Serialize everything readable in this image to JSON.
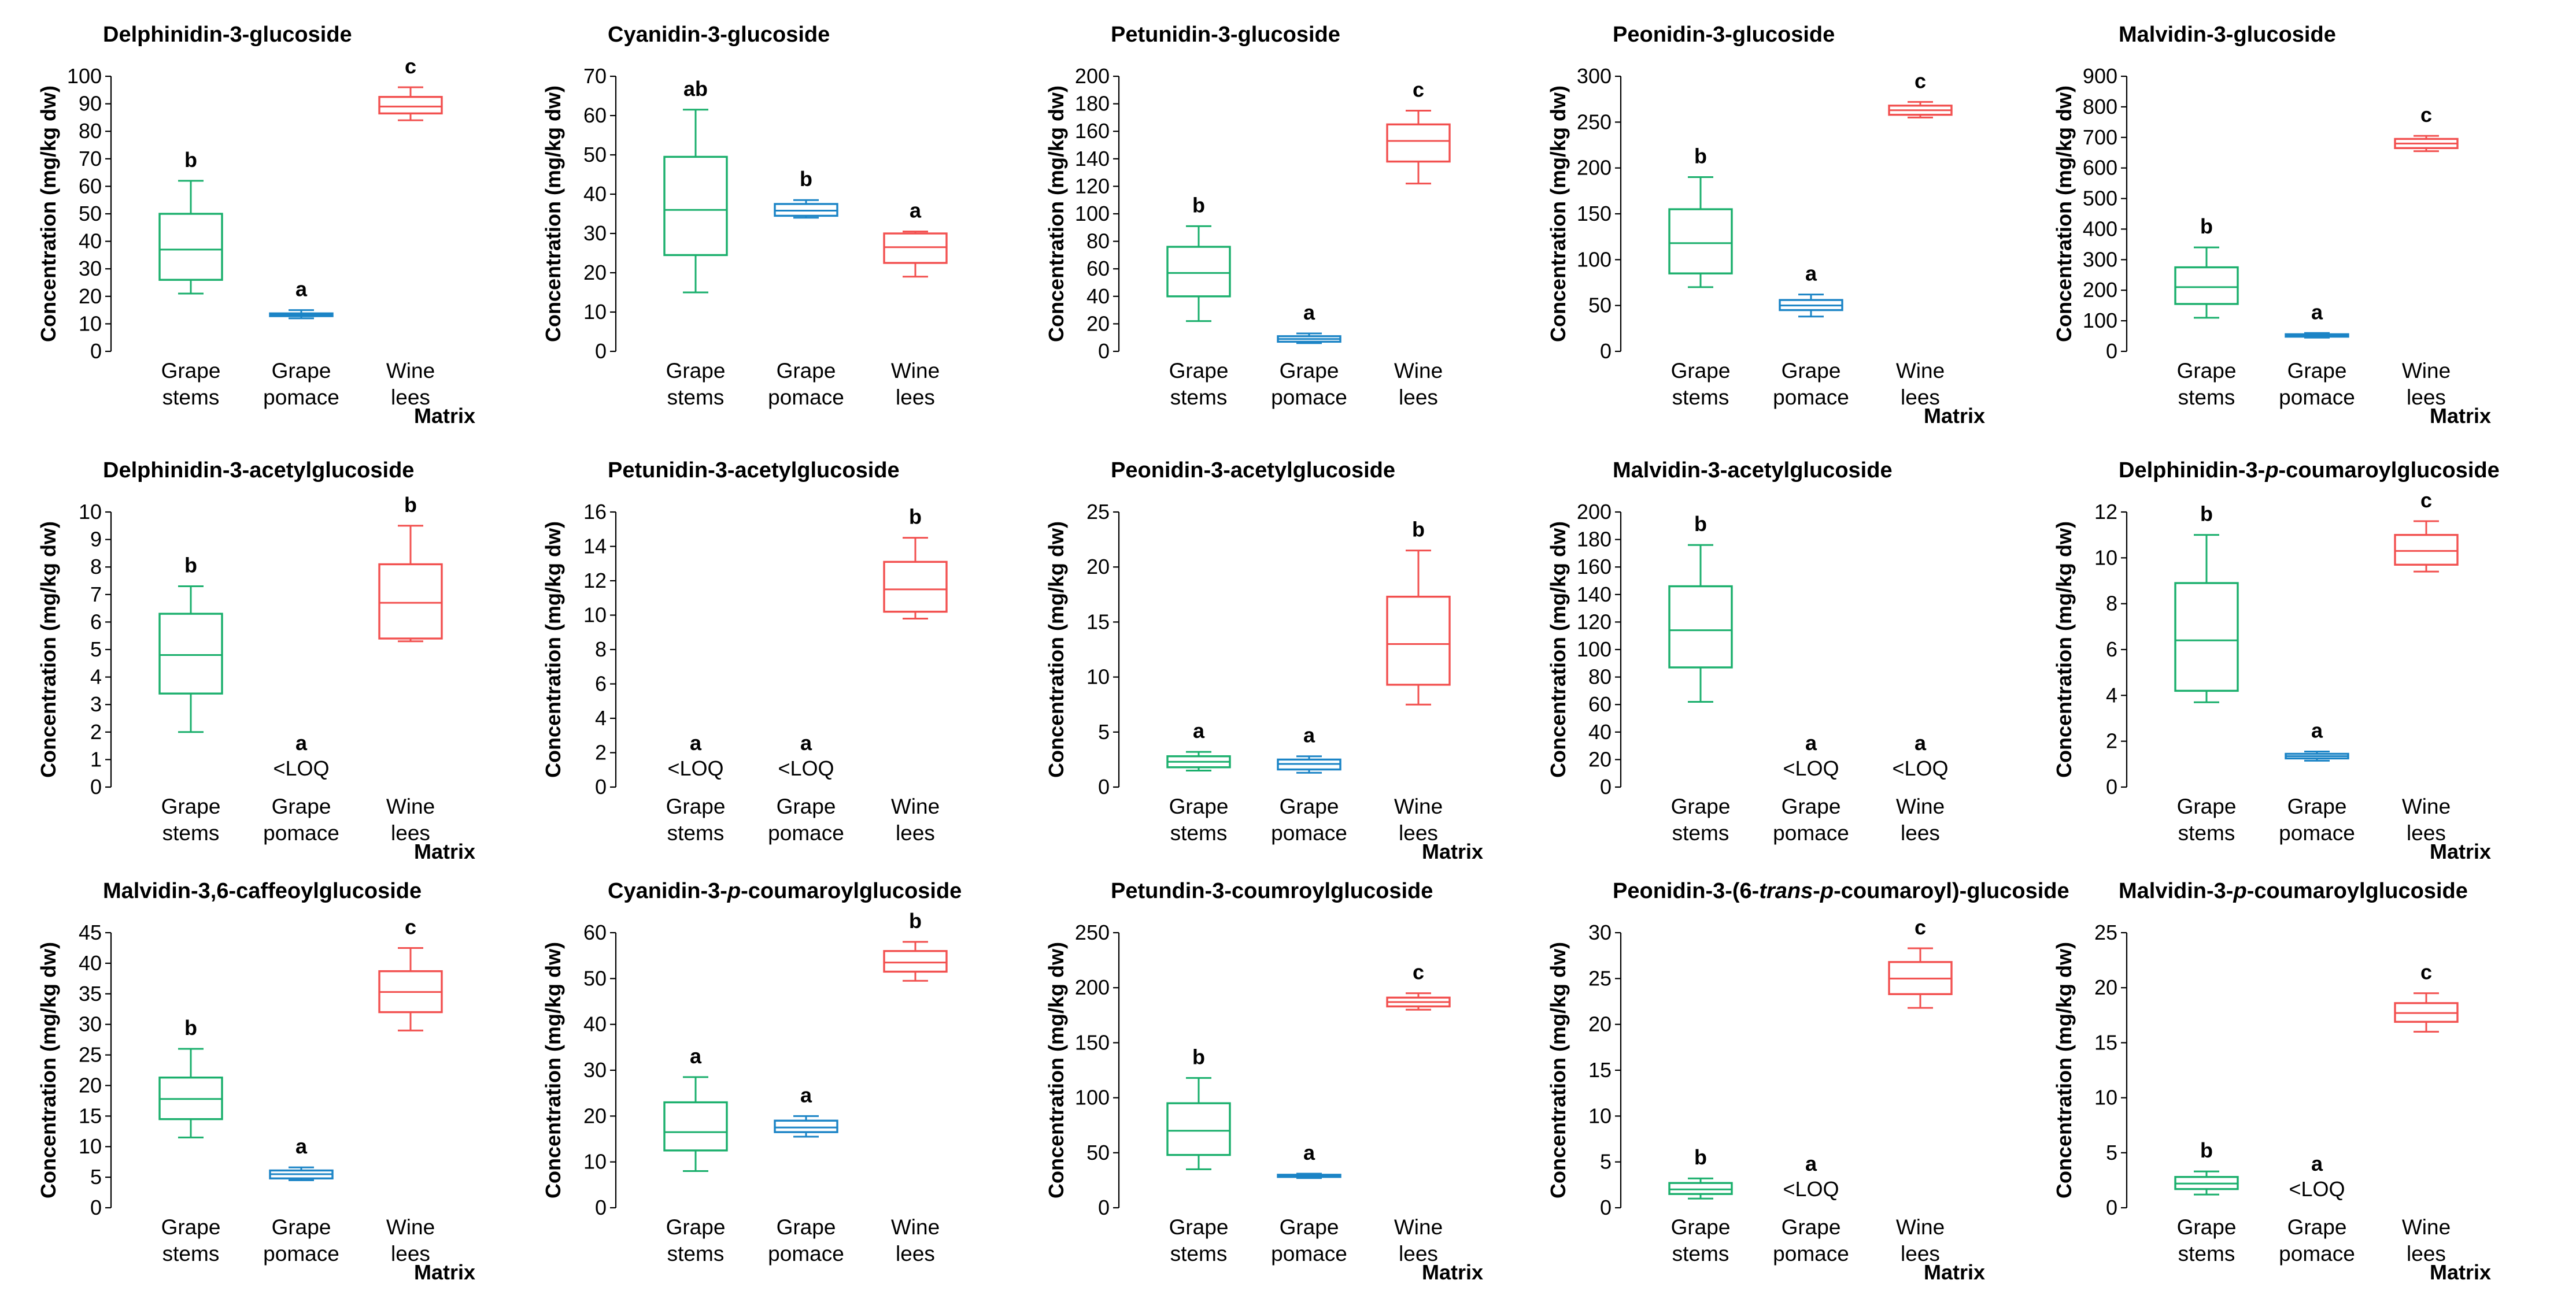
{
  "colors": {
    "grape_stems": "#1aaf6c",
    "grape_pomace": "#1b84c6",
    "wine_lees": "#f2504f"
  },
  "chart_data": [
    {
      "type": "boxplot",
      "title": "Delphinidin-3-glucoside",
      "title_parts": [
        {
          "t": "Delphinidin-3-glucoside",
          "i": false
        }
      ],
      "ylabel": "Concentration (mg/kg dw)",
      "xlabel": "Matrix",
      "categories": [
        [
          "Grape",
          "stems"
        ],
        [
          "Grape",
          "pomace"
        ],
        [
          "Wine",
          "lees"
        ]
      ],
      "ylim": [
        0,
        100
      ],
      "yticks": [
        0,
        10,
        20,
        30,
        40,
        50,
        60,
        70,
        80,
        90,
        100
      ],
      "boxes": [
        {
          "min": 21,
          "q1": 26,
          "median": 37,
          "q3": 50,
          "max": 62,
          "letter": "b",
          "loq": null
        },
        {
          "min": 12,
          "q1": 12.8,
          "median": 13.2,
          "q3": 13.8,
          "max": 15,
          "letter": "a",
          "loq": null
        },
        {
          "min": 84,
          "q1": 86.5,
          "median": 89,
          "q3": 92.5,
          "max": 96,
          "letter": "c",
          "loq": null
        }
      ]
    },
    {
      "type": "boxplot",
      "title": "Cyanidin-3-glucoside",
      "title_parts": [
        {
          "t": "Cyanidin-3-glucoside",
          "i": false
        }
      ],
      "ylabel": "Concentration (mg/kg dw)",
      "xlabel": "",
      "categories": [
        [
          "Grape",
          "stems"
        ],
        [
          "Grape",
          "pomace"
        ],
        [
          "Wine",
          "lees"
        ]
      ],
      "ylim": [
        0,
        70
      ],
      "yticks": [
        0,
        10,
        20,
        30,
        40,
        50,
        60,
        70
      ],
      "boxes": [
        {
          "min": 15,
          "q1": 24.5,
          "median": 36,
          "q3": 49.5,
          "max": 61.5,
          "letter": "ab",
          "loq": null
        },
        {
          "min": 34,
          "q1": 34.5,
          "median": 35.8,
          "q3": 37.5,
          "max": 38.5,
          "letter": "b",
          "loq": null
        },
        {
          "min": 19,
          "q1": 22.5,
          "median": 26.5,
          "q3": 30,
          "max": 30.5,
          "letter": "a",
          "loq": null
        }
      ]
    },
    {
      "type": "boxplot",
      "title": "Petunidin-3-glucoside",
      "title_parts": [
        {
          "t": "Petunidin-3-glucoside",
          "i": false
        }
      ],
      "ylabel": "Concentration (mg/kg dw)",
      "xlabel": "",
      "categories": [
        [
          "Grape",
          "stems"
        ],
        [
          "Grape",
          "pomace"
        ],
        [
          "Wine",
          "lees"
        ]
      ],
      "ylim": [
        0,
        200
      ],
      "yticks": [
        0,
        20,
        40,
        60,
        80,
        100,
        120,
        140,
        160,
        180,
        200
      ],
      "boxes": [
        {
          "min": 22,
          "q1": 40,
          "median": 57,
          "q3": 76,
          "max": 91,
          "letter": "b",
          "loq": null
        },
        {
          "min": 6,
          "q1": 7,
          "median": 9,
          "q3": 11,
          "max": 13,
          "letter": "a",
          "loq": null
        },
        {
          "min": 122,
          "q1": 138,
          "median": 153,
          "q3": 165,
          "max": 175,
          "letter": "c",
          "loq": null
        }
      ]
    },
    {
      "type": "boxplot",
      "title": "Peonidin-3-glucoside",
      "title_parts": [
        {
          "t": "Peonidin-3-glucoside",
          "i": false
        }
      ],
      "ylabel": "Concentration (mg/kg dw)",
      "xlabel": "Matrix",
      "categories": [
        [
          "Grape",
          "stems"
        ],
        [
          "Grape",
          "pomace"
        ],
        [
          "Wine",
          "lees"
        ]
      ],
      "ylim": [
        0,
        300
      ],
      "yticks": [
        0,
        50,
        100,
        150,
        200,
        250,
        300
      ],
      "boxes": [
        {
          "min": 70,
          "q1": 85,
          "median": 118,
          "q3": 155,
          "max": 190,
          "letter": "b",
          "loq": null
        },
        {
          "min": 38,
          "q1": 45,
          "median": 50,
          "q3": 56,
          "max": 62,
          "letter": "a",
          "loq": null
        },
        {
          "min": 255,
          "q1": 258,
          "median": 263,
          "q3": 268,
          "max": 272,
          "letter": "c",
          "loq": null
        }
      ]
    },
    {
      "type": "boxplot",
      "title": "Malvidin-3-glucoside",
      "title_parts": [
        {
          "t": "Malvidin-3-glucoside",
          "i": false
        }
      ],
      "ylabel": "Concentration (mg/kg dw)",
      "xlabel": "Matrix",
      "categories": [
        [
          "Grape",
          "stems"
        ],
        [
          "Grape",
          "pomace"
        ],
        [
          "Wine",
          "lees"
        ]
      ],
      "ylim": [
        0,
        900
      ],
      "yticks": [
        0,
        100,
        200,
        300,
        400,
        500,
        600,
        700,
        800,
        900
      ],
      "boxes": [
        {
          "min": 110,
          "q1": 155,
          "median": 210,
          "q3": 275,
          "max": 340,
          "letter": "b",
          "loq": null
        },
        {
          "min": 45,
          "q1": 48,
          "median": 52,
          "q3": 56,
          "max": 60,
          "letter": "a",
          "loq": null
        },
        {
          "min": 655,
          "q1": 665,
          "median": 680,
          "q3": 695,
          "max": 705,
          "letter": "c",
          "loq": null
        }
      ]
    },
    {
      "type": "boxplot",
      "title": "Delphinidin-3-acetylglucoside",
      "title_parts": [
        {
          "t": "Delphinidin-3-acetylglucoside",
          "i": false
        }
      ],
      "ylabel": "Concentration (mg/kg dw)",
      "xlabel": "Matrix",
      "categories": [
        [
          "Grape",
          "stems"
        ],
        [
          "Grape",
          "pomace"
        ],
        [
          "Wine",
          "lees"
        ]
      ],
      "ylim": [
        0,
        10
      ],
      "yticks": [
        0,
        1,
        2,
        3,
        4,
        5,
        6,
        7,
        8,
        9,
        10
      ],
      "boxes": [
        {
          "min": 2,
          "q1": 3.4,
          "median": 4.8,
          "q3": 6.3,
          "max": 7.3,
          "letter": "b",
          "loq": null
        },
        {
          "min": null,
          "q1": null,
          "median": null,
          "q3": null,
          "max": null,
          "letter": "a",
          "loq": "<LOQ"
        },
        {
          "min": 5.3,
          "q1": 5.4,
          "median": 6.7,
          "q3": 8.1,
          "max": 9.5,
          "letter": "b",
          "loq": null
        }
      ]
    },
    {
      "type": "boxplot",
      "title": "Petunidin-3-acetylglucoside",
      "title_parts": [
        {
          "t": "Petunidin-3-acetylglucoside",
          "i": false
        }
      ],
      "ylabel": "Concentration (mg/kg dw)",
      "xlabel": "",
      "categories": [
        [
          "Grape",
          "stems"
        ],
        [
          "Grape",
          "pomace"
        ],
        [
          "Wine",
          "lees"
        ]
      ],
      "ylim": [
        0,
        16
      ],
      "yticks": [
        0,
        2,
        4,
        6,
        8,
        10,
        12,
        14,
        16
      ],
      "boxes": [
        {
          "min": null,
          "q1": null,
          "median": null,
          "q3": null,
          "max": null,
          "letter": "a",
          "loq": "<LOQ"
        },
        {
          "min": null,
          "q1": null,
          "median": null,
          "q3": null,
          "max": null,
          "letter": "a",
          "loq": "<LOQ"
        },
        {
          "min": 9.8,
          "q1": 10.2,
          "median": 11.5,
          "q3": 13.1,
          "max": 14.5,
          "letter": "b",
          "loq": null
        }
      ]
    },
    {
      "type": "boxplot",
      "title": "Peonidin-3-acetylglucoside",
      "title_parts": [
        {
          "t": "Peonidin-3-acetylglucoside",
          "i": false
        }
      ],
      "ylabel": "Concentration (mg/kg dw)",
      "xlabel": "Matrix",
      "categories": [
        [
          "Grape",
          "stems"
        ],
        [
          "Grape",
          "pomace"
        ],
        [
          "Wine",
          "lees"
        ]
      ],
      "ylim": [
        0,
        25
      ],
      "yticks": [
        0,
        5,
        10,
        15,
        20,
        25
      ],
      "boxes": [
        {
          "min": 1.5,
          "q1": 1.8,
          "median": 2.3,
          "q3": 2.8,
          "max": 3.2,
          "letter": "a",
          "loq": null
        },
        {
          "min": 1.3,
          "q1": 1.6,
          "median": 2.1,
          "q3": 2.5,
          "max": 2.8,
          "letter": "a",
          "loq": null
        },
        {
          "min": 7.5,
          "q1": 9.3,
          "median": 13,
          "q3": 17.3,
          "max": 21.5,
          "letter": "b",
          "loq": null
        }
      ]
    },
    {
      "type": "boxplot",
      "title": "Malvidin-3-acetylglucoside",
      "title_parts": [
        {
          "t": "Malvidin-3-acetylglucoside",
          "i": false
        }
      ],
      "ylabel": "Concentration (mg/kg dw)",
      "xlabel": "",
      "categories": [
        [
          "Grape",
          "stems"
        ],
        [
          "Grape",
          "pomace"
        ],
        [
          "Wine",
          "lees"
        ]
      ],
      "ylim": [
        0,
        200
      ],
      "yticks": [
        0,
        20,
        40,
        60,
        80,
        100,
        120,
        140,
        160,
        180,
        200
      ],
      "boxes": [
        {
          "min": 62,
          "q1": 87,
          "median": 114,
          "q3": 146,
          "max": 176,
          "letter": "b",
          "loq": null
        },
        {
          "min": null,
          "q1": null,
          "median": null,
          "q3": null,
          "max": null,
          "letter": "a",
          "loq": "<LOQ"
        },
        {
          "min": null,
          "q1": null,
          "median": null,
          "q3": null,
          "max": null,
          "letter": "a",
          "loq": "<LOQ"
        }
      ]
    },
    {
      "type": "boxplot",
      "title": "Delphinidin-3-p-coumaroylglucoside",
      "title_parts": [
        {
          "t": "Delphinidin-3-",
          "i": false
        },
        {
          "t": "p",
          "i": true
        },
        {
          "t": "-coumaroylglucoside",
          "i": false
        }
      ],
      "ylabel": "Concentration (mg/kg dw)",
      "xlabel": "Matrix",
      "categories": [
        [
          "Grape",
          "stems"
        ],
        [
          "Grape",
          "pomace"
        ],
        [
          "Wine",
          "lees"
        ]
      ],
      "ylim": [
        0,
        12
      ],
      "yticks": [
        0,
        2,
        4,
        6,
        8,
        10,
        12
      ],
      "boxes": [
        {
          "min": 3.7,
          "q1": 4.2,
          "median": 6.4,
          "q3": 8.9,
          "max": 11,
          "letter": "b",
          "loq": null
        },
        {
          "min": 1.15,
          "q1": 1.25,
          "median": 1.35,
          "q3": 1.45,
          "max": 1.55,
          "letter": "a",
          "loq": null
        },
        {
          "min": 9.4,
          "q1": 9.7,
          "median": 10.3,
          "q3": 11,
          "max": 11.6,
          "letter": "c",
          "loq": null
        }
      ]
    },
    {
      "type": "boxplot",
      "title": "Malvidin-3,6-caffeoylglucoside",
      "title_parts": [
        {
          "t": "Malvidin-3,6-caffeoylglucoside",
          "i": false
        }
      ],
      "ylabel": "Concentration (mg/kg dw)",
      "xlabel": "Matrix",
      "categories": [
        [
          "Grape",
          "stems"
        ],
        [
          "Grape",
          "pomace"
        ],
        [
          "Wine",
          "lees"
        ]
      ],
      "ylim": [
        0,
        45
      ],
      "yticks": [
        0,
        5,
        10,
        15,
        20,
        25,
        30,
        35,
        40,
        45
      ],
      "boxes": [
        {
          "min": 11.5,
          "q1": 14.5,
          "median": 17.8,
          "q3": 21.3,
          "max": 26,
          "letter": "b",
          "loq": null
        },
        {
          "min": 4.5,
          "q1": 4.8,
          "median": 5.5,
          "q3": 6.1,
          "max": 6.6,
          "letter": "a",
          "loq": null
        },
        {
          "min": 29,
          "q1": 32,
          "median": 35.3,
          "q3": 38.7,
          "max": 42.5,
          "letter": "c",
          "loq": null
        }
      ]
    },
    {
      "type": "boxplot",
      "title": "Cyanidin-3-p-coumaroylglucoside",
      "title_parts": [
        {
          "t": "Cyanidin-3-",
          "i": false
        },
        {
          "t": "p",
          "i": true
        },
        {
          "t": "-coumaroylglucoside",
          "i": false
        }
      ],
      "ylabel": "Concentration (mg/kg dw)",
      "xlabel": "",
      "categories": [
        [
          "Grape",
          "stems"
        ],
        [
          "Grape",
          "pomace"
        ],
        [
          "Wine",
          "lees"
        ]
      ],
      "ylim": [
        0,
        60
      ],
      "yticks": [
        0,
        10,
        20,
        30,
        40,
        50,
        60
      ],
      "boxes": [
        {
          "min": 8,
          "q1": 12.5,
          "median": 16.5,
          "q3": 23,
          "max": 28.5,
          "letter": "a",
          "loq": null
        },
        {
          "min": 15.5,
          "q1": 16.5,
          "median": 17.5,
          "q3": 19,
          "max": 20,
          "letter": "a",
          "loq": null
        },
        {
          "min": 49.5,
          "q1": 51.5,
          "median": 53.5,
          "q3": 56,
          "max": 58,
          "letter": "b",
          "loq": null
        }
      ]
    },
    {
      "type": "boxplot",
      "title": "Petundin-3-coumroylglucoside",
      "title_parts": [
        {
          "t": "Petundin-3-coumroylglucoside",
          "i": false
        }
      ],
      "ylabel": "Concentration (mg/kg dw)",
      "xlabel": "Matrix",
      "categories": [
        [
          "Grape",
          "stems"
        ],
        [
          "Grape",
          "pomace"
        ],
        [
          "Wine",
          "lees"
        ]
      ],
      "ylim": [
        0,
        250
      ],
      "yticks": [
        0,
        50,
        100,
        150,
        200,
        250
      ],
      "boxes": [
        {
          "min": 35,
          "q1": 48,
          "median": 70,
          "q3": 95,
          "max": 118,
          "letter": "b",
          "loq": null
        },
        {
          "min": 27,
          "q1": 28,
          "median": 29,
          "q3": 30,
          "max": 31,
          "letter": "a",
          "loq": null
        },
        {
          "min": 180,
          "q1": 183,
          "median": 187,
          "q3": 191,
          "max": 195,
          "letter": "c",
          "loq": null
        }
      ]
    },
    {
      "type": "boxplot",
      "title": "Peonidin-3-(6-trans-p-coumaroyl)-glucoside",
      "title_parts": [
        {
          "t": "Peonidin-3-(6-",
          "i": false
        },
        {
          "t": "trans",
          "i": true
        },
        {
          "t": "-",
          "i": false
        },
        {
          "t": "p",
          "i": true
        },
        {
          "t": "-coumaroyl)-glucoside",
          "i": false
        }
      ],
      "ylabel": "Concentration (mg/kg dw)",
      "xlabel": "Matrix",
      "categories": [
        [
          "Grape",
          "stems"
        ],
        [
          "Grape",
          "pomace"
        ],
        [
          "Wine",
          "lees"
        ]
      ],
      "ylim": [
        0,
        30
      ],
      "yticks": [
        0,
        5,
        10,
        15,
        20,
        25,
        30
      ],
      "boxes": [
        {
          "min": 1,
          "q1": 1.5,
          "median": 2,
          "q3": 2.7,
          "max": 3.2,
          "letter": "b",
          "loq": null
        },
        {
          "min": null,
          "q1": null,
          "median": null,
          "q3": null,
          "max": null,
          "letter": "a",
          "loq": "<LOQ"
        },
        {
          "min": 21.8,
          "q1": 23.3,
          "median": 25,
          "q3": 26.8,
          "max": 28.3,
          "letter": "c",
          "loq": null
        }
      ]
    },
    {
      "type": "boxplot",
      "title": "Malvidin-3-p-coumaroylglucoside",
      "title_parts": [
        {
          "t": "Malvidin-3-",
          "i": false
        },
        {
          "t": "p",
          "i": true
        },
        {
          "t": "-coumaroylglucoside",
          "i": false
        }
      ],
      "ylabel": "Concentration (mg/kg dw)",
      "xlabel": "Matrix",
      "categories": [
        [
          "Grape",
          "stems"
        ],
        [
          "Grape",
          "pomace"
        ],
        [
          "Wine",
          "lees"
        ]
      ],
      "ylim": [
        0,
        25
      ],
      "yticks": [
        0,
        5,
        10,
        15,
        20,
        25
      ],
      "boxes": [
        {
          "min": 1.2,
          "q1": 1.7,
          "median": 2.2,
          "q3": 2.8,
          "max": 3.3,
          "letter": "b",
          "loq": null
        },
        {
          "min": null,
          "q1": null,
          "median": null,
          "q3": null,
          "max": null,
          "letter": "a",
          "loq": "<LOQ"
        },
        {
          "min": 16,
          "q1": 16.9,
          "median": 17.7,
          "q3": 18.6,
          "max": 19.5,
          "letter": "c",
          "loq": null
        }
      ]
    }
  ]
}
